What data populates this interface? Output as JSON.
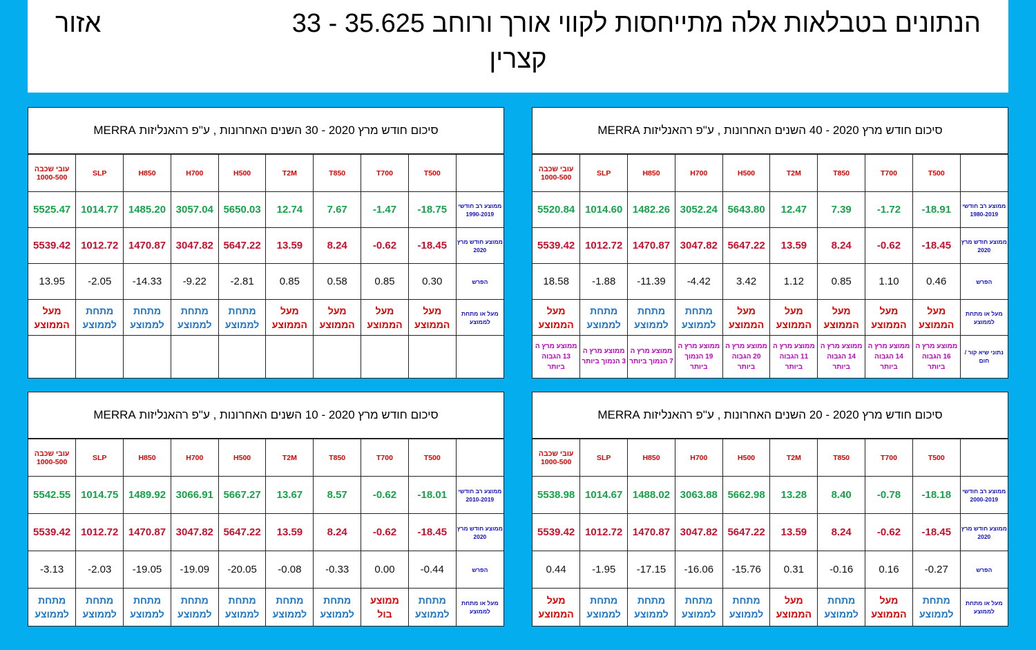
{
  "header": {
    "line1_right": "הנתונים בטבלאות אלה מתייחסות לקווי אורך ורוחב 35.625 - 33",
    "line1_left": "אזור",
    "line2": "קצרין"
  },
  "colors": {
    "background": "#04ADEE",
    "header_red": "#E00000",
    "avg_green": "#16A34A",
    "current_red": "#C8102E",
    "label_blue": "#1010D0",
    "below_blue": "#1C76C8",
    "extreme_magenta": "#C000C0"
  },
  "column_headers": [
    "T500",
    "T700",
    "T850",
    "T2M",
    "H500",
    "H700",
    "H850",
    "SLP",
    "עובי שכבה 1000-500"
  ],
  "panels": [
    {
      "title": "סיכום חודש מרץ 2020  -  40 השנים האחרונות  , ע\"פ רהאנליזות MERRA",
      "row_labels": {
        "avg": "ממוצע רב חודשי 1980-2019",
        "current": "ממוצע חודש מרץ 2020",
        "diff": "הפרש",
        "status": "מעל או מתחת לממוצע",
        "extreme": "נתוני שיא  קור / חום"
      },
      "avg": [
        "-18.91",
        "-1.72",
        "7.39",
        "12.47",
        "5643.80",
        "3052.24",
        "1482.26",
        "1014.60",
        "5520.84"
      ],
      "current": [
        "-18.45",
        "-0.62",
        "8.24",
        "13.59",
        "5647.22",
        "3047.82",
        "1470.87",
        "1012.72",
        "5539.42"
      ],
      "diff": [
        "0.46",
        "1.10",
        "0.85",
        "1.12",
        "3.42",
        "-4.42",
        "-11.39",
        "-1.88",
        "18.58"
      ],
      "status": [
        {
          "l1": "מעל",
          "l2": "הממוצע",
          "above": true
        },
        {
          "l1": "מעל",
          "l2": "הממוצע",
          "above": true
        },
        {
          "l1": "מעל",
          "l2": "הממוצע",
          "above": true
        },
        {
          "l1": "מעל",
          "l2": "הממוצע",
          "above": true
        },
        {
          "l1": "מעל",
          "l2": "הממוצע",
          "above": true
        },
        {
          "l1": "מתחת",
          "l2": "לממוצע",
          "above": false
        },
        {
          "l1": "מתחת",
          "l2": "לממוצע",
          "above": false
        },
        {
          "l1": "מתחת",
          "l2": "לממוצע",
          "above": false
        },
        {
          "l1": "מעל",
          "l2": "הממוצע",
          "above": true
        }
      ],
      "extreme": [
        "ממוצע מרץ ה 16 הגבוה ביותר",
        "ממוצע מרץ ה 14 הגבוה ביותר",
        "ממוצע מרץ ה 14 הגבוה ביותר",
        "ממוצע מרץ ה 11 הגבוה ביותר",
        "ממוצע מרץ ה 20 הגבוה ביותר",
        "ממוצע מרץ ה 19 הנמוך ביותר",
        "ממוצע מרץ ה 7 הנמוך ביותר",
        "ממוצע מרץ ה 3 הנמוך ביותר",
        "ממוצע מרץ ה 13 הגבוה ביותר"
      ]
    },
    {
      "title": "סיכום חודש מרץ 2020  -  30 השנים האחרונות  , ע\"פ רהאנליזות MERRA",
      "row_labels": {
        "avg": "ממוצע רב חודשי 1990-2019",
        "current": "ממוצע חודש מרץ 2020",
        "diff": "הפרש",
        "status": "מעל או מתחת לממוצע",
        "extreme": ""
      },
      "avg": [
        "-18.75",
        "-1.47",
        "7.67",
        "12.74",
        "5650.03",
        "3057.04",
        "1485.20",
        "1014.77",
        "5525.47"
      ],
      "current": [
        "-18.45",
        "-0.62",
        "8.24",
        "13.59",
        "5647.22",
        "3047.82",
        "1470.87",
        "1012.72",
        "5539.42"
      ],
      "diff": [
        "0.30",
        "0.85",
        "0.58",
        "0.85",
        "-2.81",
        "-9.22",
        "-14.33",
        "-2.05",
        "13.95"
      ],
      "status": [
        {
          "l1": "מעל",
          "l2": "הממוצע",
          "above": true
        },
        {
          "l1": "מעל",
          "l2": "הממוצע",
          "above": true
        },
        {
          "l1": "מעל",
          "l2": "הממוצע",
          "above": true
        },
        {
          "l1": "מעל",
          "l2": "הממוצע",
          "above": true
        },
        {
          "l1": "מתחת",
          "l2": "לממוצע",
          "above": false
        },
        {
          "l1": "מתחת",
          "l2": "לממוצע",
          "above": false
        },
        {
          "l1": "מתחת",
          "l2": "לממוצע",
          "above": false
        },
        {
          "l1": "מתחת",
          "l2": "לממוצע",
          "above": false
        },
        {
          "l1": "מעל",
          "l2": "הממוצע",
          "above": true
        }
      ],
      "extreme": [
        "",
        "",
        "",
        "",
        "",
        "",
        "",
        "",
        ""
      ]
    },
    {
      "title": "סיכום חודש מרץ 2020  -  20 השנים האחרונות  , ע\"פ רהאנליזות MERRA",
      "row_labels": {
        "avg": "ממוצע רב חודשי 2000-2019",
        "current": "ממוצע חודש מרץ 2020",
        "diff": "הפרש",
        "status": "מעל או מתחת לממוצע"
      },
      "avg": [
        "-18.18",
        "-0.78",
        "8.40",
        "13.28",
        "5662.98",
        "3063.88",
        "1488.02",
        "1014.67",
        "5538.98"
      ],
      "current": [
        "-18.45",
        "-0.62",
        "8.24",
        "13.59",
        "5647.22",
        "3047.82",
        "1470.87",
        "1012.72",
        "5539.42"
      ],
      "diff": [
        "-0.27",
        "0.16",
        "-0.16",
        "0.31",
        "-15.76",
        "-16.06",
        "-17.15",
        "-1.95",
        "0.44"
      ],
      "status": [
        {
          "l1": "מתחת",
          "l2": "לממוצע",
          "above": false
        },
        {
          "l1": "מעל",
          "l2": "הממוצע",
          "above": true
        },
        {
          "l1": "מתחת",
          "l2": "לממוצע",
          "above": false
        },
        {
          "l1": "מעל",
          "l2": "הממוצע",
          "above": true
        },
        {
          "l1": "מתחת",
          "l2": "לממוצע",
          "above": false
        },
        {
          "l1": "מתחת",
          "l2": "לממוצע",
          "above": false
        },
        {
          "l1": "מתחת",
          "l2": "לממוצע",
          "above": false
        },
        {
          "l1": "מתחת",
          "l2": "לממוצע",
          "above": false
        },
        {
          "l1": "מעל",
          "l2": "הממוצע",
          "above": true
        }
      ]
    },
    {
      "title": "סיכום חודש מרץ 2020  -  10 השנים האחרונות  , ע\"פ רהאנליזות MERRA",
      "row_labels": {
        "avg": "ממוצע רב חודשי 2010-2019",
        "current": "ממוצע חודש מרץ 2020",
        "diff": "הפרש",
        "status": "מעל או מתחת לממוצע"
      },
      "avg": [
        "-18.01",
        "-0.62",
        "8.57",
        "13.67",
        "5667.27",
        "3066.91",
        "1489.92",
        "1014.75",
        "5542.55"
      ],
      "current": [
        "-18.45",
        "-0.62",
        "8.24",
        "13.59",
        "5647.22",
        "3047.82",
        "1470.87",
        "1012.72",
        "5539.42"
      ],
      "diff": [
        "-0.44",
        "0.00",
        "-0.33",
        "-0.08",
        "-20.05",
        "-19.09",
        "-19.05",
        "-2.03",
        "-3.13"
      ],
      "status": [
        {
          "l1": "מתחת",
          "l2": "לממוצע",
          "above": false
        },
        {
          "l1": "ממוצע",
          "l2": "בול",
          "above": true
        },
        {
          "l1": "מתחת",
          "l2": "לממוצע",
          "above": false
        },
        {
          "l1": "מתחת",
          "l2": "לממוצע",
          "above": false
        },
        {
          "l1": "מתחת",
          "l2": "לממוצע",
          "above": false
        },
        {
          "l1": "מתחת",
          "l2": "לממוצע",
          "above": false
        },
        {
          "l1": "מתחת",
          "l2": "לממוצע",
          "above": false
        },
        {
          "l1": "מתחת",
          "l2": "לממוצע",
          "above": false
        },
        {
          "l1": "מתחת",
          "l2": "לממוצע",
          "above": false
        }
      ]
    }
  ]
}
